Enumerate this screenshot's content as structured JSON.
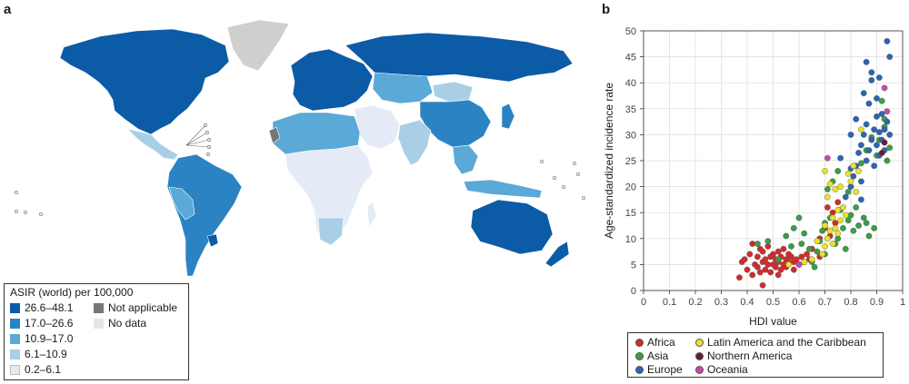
{
  "panel_a": {
    "letter": "a",
    "legend_title": "ASIR (world) per 100,000",
    "classes": [
      {
        "label": "26.6–48.1",
        "color": "#0c5ba6"
      },
      {
        "label": "17.0–26.6",
        "color": "#2b83c3"
      },
      {
        "label": "10.9–17.0",
        "color": "#5aa9d6"
      },
      {
        "label": "6.1–10.9",
        "color": "#a9cfe6"
      },
      {
        "label": "0.2–6.1",
        "color": "#e4ebf6"
      }
    ],
    "special": [
      {
        "label": "Not applicable",
        "color": "#777777"
      },
      {
        "label": "No data",
        "color": "#e6e6e6"
      }
    ]
  },
  "chart_data": {
    "type": "scatter",
    "letter": "b",
    "xlabel": "HDI value",
    "ylabel": "Age-standardized incidence rate",
    "xlim": [
      0,
      1
    ],
    "ylim": [
      0,
      50
    ],
    "xticks": [
      "0",
      "0.1",
      "0.2",
      "0.3",
      "0.4",
      "0.5",
      "0.6",
      "0.7",
      "0.8",
      "0.9",
      "1"
    ],
    "yticks": [
      "0",
      "5",
      "10",
      "15",
      "20",
      "25",
      "30",
      "35",
      "40",
      "45",
      "50"
    ],
    "grid": true,
    "legend_placement": "bottom",
    "series": [
      {
        "name": "Africa",
        "color": "#d22b2b",
        "points": [
          [
            0.37,
            2.5
          ],
          [
            0.38,
            5.5
          ],
          [
            0.39,
            6.0
          ],
          [
            0.4,
            4.0
          ],
          [
            0.41,
            7.0
          ],
          [
            0.42,
            3.0
          ],
          [
            0.42,
            9.0
          ],
          [
            0.43,
            5.0
          ],
          [
            0.44,
            6.5
          ],
          [
            0.44,
            4.5
          ],
          [
            0.45,
            8.0
          ],
          [
            0.45,
            3.5
          ],
          [
            0.46,
            5.5
          ],
          [
            0.46,
            7.5
          ],
          [
            0.47,
            4.0
          ],
          [
            0.47,
            6.0
          ],
          [
            0.48,
            5.0
          ],
          [
            0.48,
            8.5
          ],
          [
            0.49,
            3.5
          ],
          [
            0.49,
            6.5
          ],
          [
            0.5,
            5.0
          ],
          [
            0.5,
            7.0
          ],
          [
            0.51,
            4.5
          ],
          [
            0.51,
            6.0
          ],
          [
            0.52,
            5.5
          ],
          [
            0.52,
            7.5
          ],
          [
            0.53,
            4.0
          ],
          [
            0.53,
            6.5
          ],
          [
            0.54,
            5.0
          ],
          [
            0.54,
            8.0
          ],
          [
            0.55,
            6.0
          ],
          [
            0.55,
            4.5
          ],
          [
            0.56,
            7.0
          ],
          [
            0.56,
            5.5
          ],
          [
            0.57,
            6.5
          ],
          [
            0.58,
            4.0
          ],
          [
            0.58,
            5.5
          ],
          [
            0.59,
            6.0
          ],
          [
            0.6,
            5.0
          ],
          [
            0.61,
            6.5
          ],
          [
            0.62,
            5.5
          ],
          [
            0.63,
            7.0
          ],
          [
            0.64,
            6.0
          ],
          [
            0.65,
            8.0
          ],
          [
            0.68,
            6.5
          ],
          [
            0.7,
            12.0
          ],
          [
            0.72,
            10.5
          ],
          [
            0.71,
            16.0
          ],
          [
            0.73,
            15.0
          ],
          [
            0.68,
            10.0
          ],
          [
            0.74,
            13.0
          ],
          [
            0.75,
            17.0
          ],
          [
            0.46,
            1.0
          ],
          [
            0.52,
            3.0
          ]
        ]
      },
      {
        "name": "Asia",
        "color": "#3a9d47",
        "points": [
          [
            0.44,
            9.0
          ],
          [
            0.48,
            9.5
          ],
          [
            0.52,
            6.0
          ],
          [
            0.55,
            10.5
          ],
          [
            0.57,
            8.5
          ],
          [
            0.58,
            12.0
          ],
          [
            0.6,
            14.0
          ],
          [
            0.61,
            9.0
          ],
          [
            0.62,
            11.0
          ],
          [
            0.64,
            8.0
          ],
          [
            0.65,
            5.5
          ],
          [
            0.66,
            4.5
          ],
          [
            0.67,
            7.5
          ],
          [
            0.68,
            9.5
          ],
          [
            0.69,
            11.5
          ],
          [
            0.7,
            13.0
          ],
          [
            0.7,
            7.0
          ],
          [
            0.71,
            19.5
          ],
          [
            0.72,
            14.0
          ],
          [
            0.73,
            21.0
          ],
          [
            0.74,
            9.0
          ],
          [
            0.75,
            10.0
          ],
          [
            0.75,
            23.0
          ],
          [
            0.76,
            15.5
          ],
          [
            0.77,
            12.0
          ],
          [
            0.78,
            8.0
          ],
          [
            0.79,
            13.5
          ],
          [
            0.79,
            19.0
          ],
          [
            0.8,
            14.5
          ],
          [
            0.81,
            11.5
          ],
          [
            0.82,
            16.0
          ],
          [
            0.83,
            12.5
          ],
          [
            0.84,
            24.5
          ],
          [
            0.85,
            14.0
          ],
          [
            0.86,
            13.0
          ],
          [
            0.86,
            27.0
          ],
          [
            0.87,
            10.5
          ],
          [
            0.89,
            12.0
          ],
          [
            0.9,
            26.0
          ],
          [
            0.91,
            29.0
          ],
          [
            0.92,
            36.5
          ],
          [
            0.93,
            31.5
          ],
          [
            0.94,
            25.0
          ],
          [
            0.95,
            27.5
          ],
          [
            0.88,
            29.5
          ],
          [
            0.93,
            33.0
          ]
        ]
      },
      {
        "name": "Europe",
        "color": "#2a66b0",
        "points": [
          [
            0.76,
            25.5
          ],
          [
            0.78,
            18.0
          ],
          [
            0.8,
            20.0
          ],
          [
            0.8,
            30.0
          ],
          [
            0.81,
            22.0
          ],
          [
            0.82,
            24.0
          ],
          [
            0.82,
            33.0
          ],
          [
            0.83,
            26.5
          ],
          [
            0.84,
            28.0
          ],
          [
            0.84,
            21.0
          ],
          [
            0.85,
            30.0
          ],
          [
            0.85,
            38.0
          ],
          [
            0.86,
            25.0
          ],
          [
            0.86,
            32.0
          ],
          [
            0.87,
            27.0
          ],
          [
            0.87,
            36.0
          ],
          [
            0.88,
            29.0
          ],
          [
            0.88,
            40.5
          ],
          [
            0.89,
            31.0
          ],
          [
            0.89,
            24.0
          ],
          [
            0.9,
            28.0
          ],
          [
            0.9,
            33.5
          ],
          [
            0.9,
            37.0
          ],
          [
            0.91,
            26.0
          ],
          [
            0.91,
            30.5
          ],
          [
            0.92,
            34.0
          ],
          [
            0.92,
            29.0
          ],
          [
            0.93,
            27.0
          ],
          [
            0.93,
            31.0
          ],
          [
            0.94,
            32.5
          ],
          [
            0.94,
            48.0
          ],
          [
            0.95,
            45.0
          ],
          [
            0.95,
            30.0
          ],
          [
            0.86,
            44.0
          ],
          [
            0.88,
            42.0
          ],
          [
            0.91,
            41.0
          ],
          [
            0.8,
            23.5
          ],
          [
            0.84,
            17.5
          ]
        ]
      },
      {
        "name": "Latin America and the Caribbean",
        "color": "#e6e32a",
        "points": [
          [
            0.56,
            5.0
          ],
          [
            0.62,
            5.5
          ],
          [
            0.65,
            6.0
          ],
          [
            0.67,
            9.5
          ],
          [
            0.69,
            7.0
          ],
          [
            0.7,
            8.5
          ],
          [
            0.7,
            12.5
          ],
          [
            0.71,
            10.0
          ],
          [
            0.71,
            18.0
          ],
          [
            0.72,
            11.5
          ],
          [
            0.72,
            20.5
          ],
          [
            0.73,
            9.0
          ],
          [
            0.73,
            14.0
          ],
          [
            0.74,
            12.0
          ],
          [
            0.74,
            19.5
          ],
          [
            0.75,
            11.0
          ],
          [
            0.75,
            15.5
          ],
          [
            0.76,
            13.5
          ],
          [
            0.76,
            20.0
          ],
          [
            0.77,
            16.0
          ],
          [
            0.78,
            14.5
          ],
          [
            0.79,
            22.5
          ],
          [
            0.8,
            21.0
          ],
          [
            0.81,
            24.0
          ],
          [
            0.82,
            19.0
          ],
          [
            0.83,
            23.0
          ],
          [
            0.84,
            31.0
          ],
          [
            0.7,
            23.0
          ]
        ]
      },
      {
        "name": "Northern America",
        "color": "#6b1a2e",
        "points": [
          [
            0.93,
            28.5
          ],
          [
            0.92,
            26.5
          ]
        ]
      },
      {
        "name": "Oceania",
        "color": "#c84aa8",
        "points": [
          [
            0.6,
            5.0
          ],
          [
            0.71,
            25.5
          ],
          [
            0.93,
            39.0
          ],
          [
            0.94,
            34.5
          ]
        ]
      }
    ]
  }
}
